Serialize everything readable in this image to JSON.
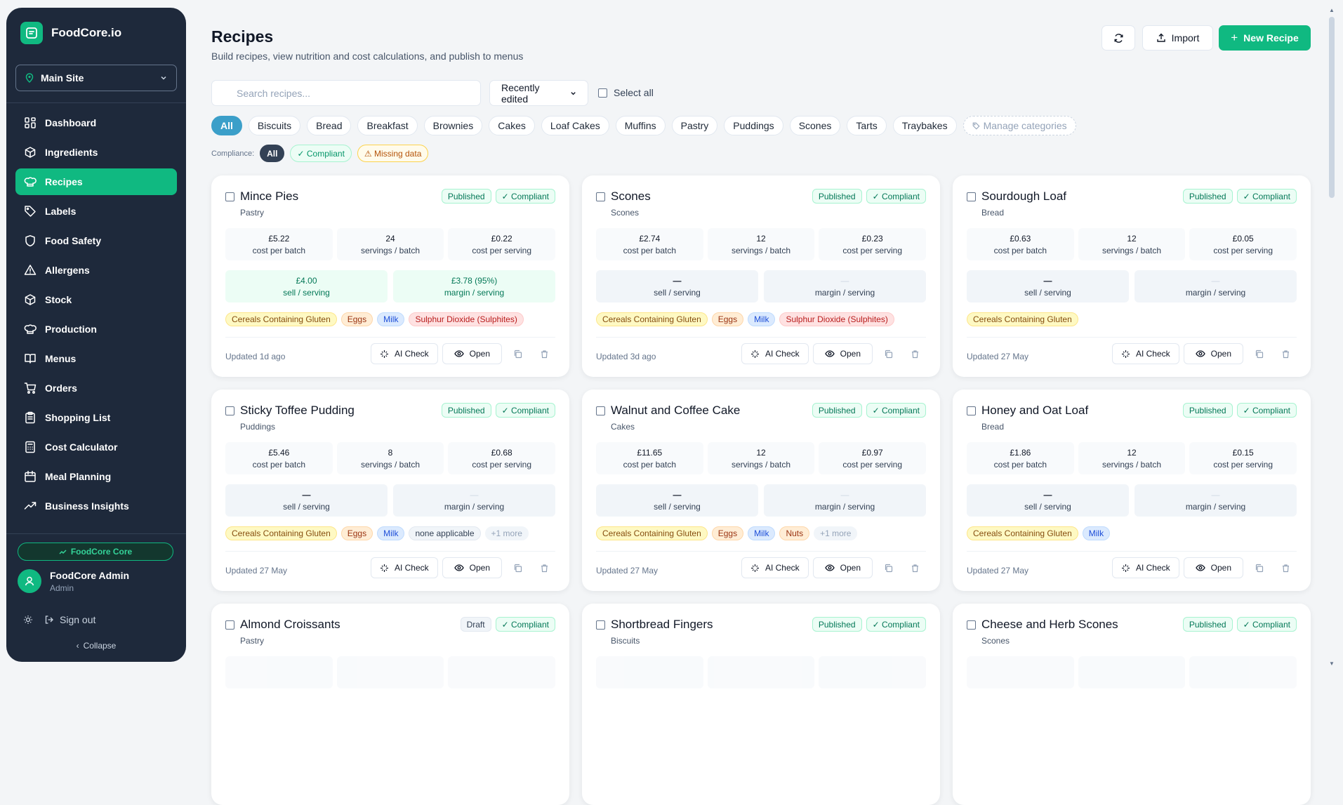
{
  "brand": {
    "name": "FoodCore.io"
  },
  "site_selector": {
    "label": "Main Site"
  },
  "nav": [
    {
      "label": "Dashboard",
      "icon": "dashboard-icon"
    },
    {
      "label": "Ingredients",
      "icon": "box-icon"
    },
    {
      "label": "Recipes",
      "icon": "chef-hat-icon",
      "active": true
    },
    {
      "label": "Labels",
      "icon": "tag-icon"
    },
    {
      "label": "Food Safety",
      "icon": "shield-icon"
    },
    {
      "label": "Allergens",
      "icon": "warning-icon"
    },
    {
      "label": "Stock",
      "icon": "box-icon"
    },
    {
      "label": "Production",
      "icon": "chef-hat-icon"
    },
    {
      "label": "Menus",
      "icon": "book-icon"
    },
    {
      "label": "Orders",
      "icon": "cart-icon"
    },
    {
      "label": "Shopping List",
      "icon": "clipboard-icon"
    },
    {
      "label": "Cost Calculator",
      "icon": "calculator-icon"
    },
    {
      "label": "Meal Planning",
      "icon": "calendar-icon"
    },
    {
      "label": "Business Insights",
      "icon": "trend-icon"
    }
  ],
  "core_badge": "FoodCore Core",
  "user": {
    "name": "FoodCore Admin",
    "role": "Admin"
  },
  "signout": "Sign out",
  "collapse": "Collapse",
  "page": {
    "title": "Recipes",
    "subtitle": "Build recipes, view nutrition and cost calculations, and publish to menus"
  },
  "header_buttons": {
    "import": "Import",
    "new_recipe": "New Recipe"
  },
  "search": {
    "placeholder": "Search recipes..."
  },
  "sort": {
    "value": "Recently edited"
  },
  "select_all": "Select all",
  "categories": [
    "All",
    "Biscuits",
    "Bread",
    "Breakfast",
    "Brownies",
    "Cakes",
    "Loaf Cakes",
    "Muffins",
    "Pastry",
    "Puddings",
    "Scones",
    "Tarts",
    "Traybakes"
  ],
  "manage_categories": "Manage categories",
  "compliance": {
    "label": "Compliance:",
    "options": [
      "All",
      "✓ Compliant",
      "⚠ Missing data"
    ]
  },
  "stat_labels": {
    "batch": "cost per batch",
    "servings": "servings / batch",
    "serving": "cost per serving",
    "sell": "sell / serving",
    "margin": "margin / serving"
  },
  "action_labels": {
    "ai_check": "AI Check",
    "open": "Open"
  },
  "recipes": [
    {
      "name": "Mince Pies",
      "category": "Pastry",
      "status": "Published",
      "compliance": "✓ Compliant",
      "cost_batch": "£5.22",
      "servings": "24",
      "cost_serving": "£0.22",
      "sell": "£4.00",
      "margin": "£3.78 (95%)",
      "allergens": [
        [
          "Cereals Containing Gluten",
          "yellow"
        ],
        [
          "Eggs",
          "orange"
        ],
        [
          "Milk",
          "blue"
        ],
        [
          "Sulphur Dioxide (Sulphites)",
          "red"
        ]
      ],
      "updated": "Updated 1d ago"
    },
    {
      "name": "Scones",
      "category": "Scones",
      "status": "Published",
      "compliance": "✓ Compliant",
      "cost_batch": "£2.74",
      "servings": "12",
      "cost_serving": "£0.23",
      "sell": "—",
      "margin": "—",
      "allergens": [
        [
          "Cereals Containing Gluten",
          "yellow"
        ],
        [
          "Eggs",
          "orange"
        ],
        [
          "Milk",
          "blue"
        ],
        [
          "Sulphur Dioxide (Sulphites)",
          "red"
        ]
      ],
      "updated": "Updated 3d ago"
    },
    {
      "name": "Sourdough Loaf",
      "category": "Bread",
      "status": "Published",
      "compliance": "✓ Compliant",
      "cost_batch": "£0.63",
      "servings": "12",
      "cost_serving": "£0.05",
      "sell": "—",
      "margin": "—",
      "allergens": [
        [
          "Cereals Containing Gluten",
          "yellow"
        ]
      ],
      "updated": "Updated 27 May"
    },
    {
      "name": "Sticky Toffee Pudding",
      "category": "Puddings",
      "status": "Published",
      "compliance": "✓ Compliant",
      "cost_batch": "£5.46",
      "servings": "8",
      "cost_serving": "£0.68",
      "sell": "—",
      "margin": "—",
      "allergens": [
        [
          "Cereals Containing Gluten",
          "yellow"
        ],
        [
          "Eggs",
          "orange"
        ],
        [
          "Milk",
          "blue"
        ],
        [
          "none applicable",
          "gray"
        ],
        [
          "+1 more",
          "more"
        ]
      ],
      "updated": "Updated 27 May"
    },
    {
      "name": "Walnut and Coffee Cake",
      "category": "Cakes",
      "status": "Published",
      "compliance": "✓ Compliant",
      "cost_batch": "£11.65",
      "servings": "12",
      "cost_serving": "£0.97",
      "sell": "—",
      "margin": "—",
      "allergens": [
        [
          "Cereals Containing Gluten",
          "yellow"
        ],
        [
          "Eggs",
          "orange"
        ],
        [
          "Milk",
          "blue"
        ],
        [
          "Nuts",
          "orange"
        ],
        [
          "+1 more",
          "more"
        ]
      ],
      "updated": "Updated 27 May"
    },
    {
      "name": "Honey and Oat Loaf",
      "category": "Bread",
      "status": "Published",
      "compliance": "✓ Compliant",
      "cost_batch": "£1.86",
      "servings": "12",
      "cost_serving": "£0.15",
      "sell": "—",
      "margin": "—",
      "allergens": [
        [
          "Cereals Containing Gluten",
          "yellow"
        ],
        [
          "Milk",
          "blue"
        ]
      ],
      "updated": "Updated 27 May"
    },
    {
      "name": "Almond Croissants",
      "category": "Pastry",
      "status": "Draft",
      "compliance": "✓ Compliant"
    },
    {
      "name": "Shortbread Fingers",
      "category": "Biscuits",
      "status": "Published",
      "compliance": "✓ Compliant"
    },
    {
      "name": "Cheese and Herb Scones",
      "category": "Scones",
      "status": "Published",
      "compliance": "✓ Compliant"
    }
  ]
}
